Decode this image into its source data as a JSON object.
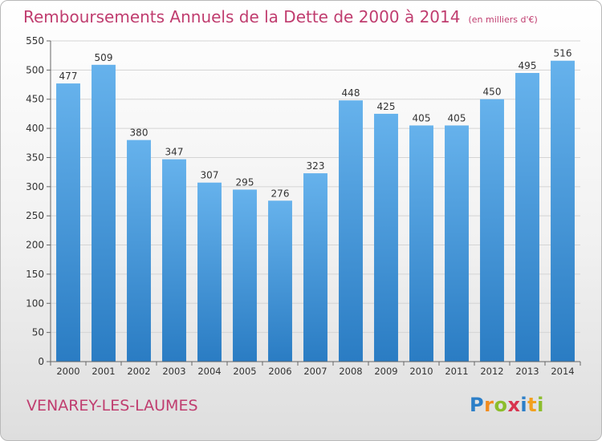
{
  "page": {
    "title": "Remboursements Annuels de la Dette de 2000 à 2014",
    "unit": "(en milliers d'€)",
    "commune": "VENAREY-LES-LAUMES",
    "logo": {
      "letters": [
        "P",
        "r",
        "o",
        "x",
        "i",
        "t",
        "i"
      ],
      "colors": [
        "#2c7fc8",
        "#f28c1e",
        "#8cbd2b",
        "#d8344f",
        "#2c7fc8",
        "#f2a01e",
        "#8cbd2b"
      ]
    }
  },
  "chart_data": {
    "type": "bar",
    "title": "Remboursements Annuels de la Dette de 2000 à 2014",
    "ylabel": "en milliers d'€",
    "xlabel": "",
    "categories": [
      "2000",
      "2001",
      "2002",
      "2003",
      "2004",
      "2005",
      "2006",
      "2007",
      "2008",
      "2009",
      "2010",
      "2011",
      "2012",
      "2013",
      "2014"
    ],
    "values": [
      477,
      509,
      380,
      347,
      307,
      295,
      276,
      323,
      448,
      425,
      405,
      405,
      450,
      495,
      516
    ],
    "ylim": [
      0,
      550
    ],
    "yticks": [
      0,
      50,
      100,
      150,
      200,
      250,
      300,
      350,
      400,
      450,
      500,
      550
    ],
    "grid": true,
    "colors": {
      "bar_light": "#66b2ec",
      "bar_dark": "#2a7cc3",
      "grid": "#d4d4d4",
      "axis": "#666666",
      "text": "#333333"
    }
  }
}
